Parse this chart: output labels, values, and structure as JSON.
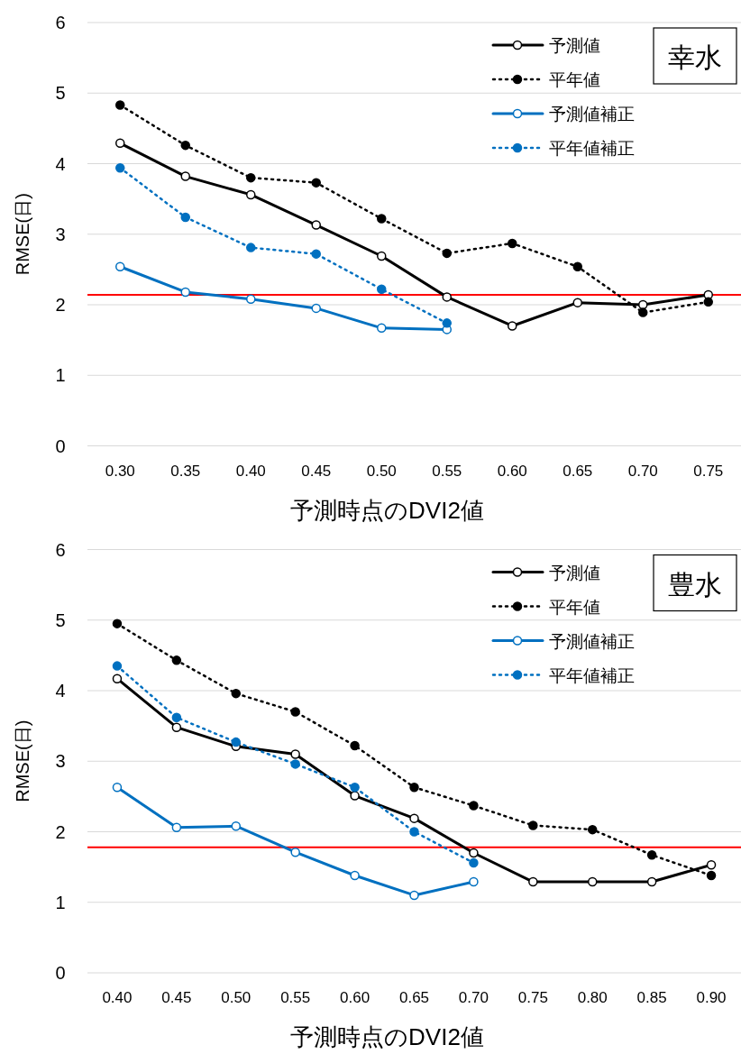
{
  "chart_data": [
    {
      "type": "line",
      "title": "幸水",
      "xlabel": "予測時点のDVI2値",
      "ylabel": "RMSE(日)",
      "categories": [
        "0.30",
        "0.35",
        "0.40",
        "0.45",
        "0.50",
        "0.55",
        "0.60",
        "0.65",
        "0.70",
        "0.75"
      ],
      "ylim": [
        0,
        6
      ],
      "yticks": [
        0,
        1,
        2,
        3,
        4,
        5,
        6
      ],
      "grid": "y",
      "legend": "top right",
      "marker": "circle",
      "series": [
        {
          "name": "予測値",
          "color": "#000000",
          "line_style": "solid",
          "values": [
            4.29,
            3.82,
            3.56,
            3.13,
            2.69,
            2.11,
            1.7,
            2.03,
            2.0,
            2.14
          ]
        },
        {
          "name": "平年値",
          "color": "#000000",
          "line_style": "dotted",
          "values": [
            4.83,
            4.26,
            3.8,
            3.73,
            3.22,
            2.73,
            2.87,
            2.54,
            1.89,
            2.04
          ]
        },
        {
          "name": "予測値補正",
          "color": "#0070c0",
          "line_style": "solid",
          "values": [
            2.54,
            2.18,
            2.08,
            1.95,
            1.67,
            1.65,
            null,
            null,
            null,
            null
          ]
        },
        {
          "name": "平年値補正",
          "color": "#0070c0",
          "line_style": "dotted",
          "values": [
            3.94,
            3.24,
            2.81,
            2.72,
            2.22,
            1.74,
            null,
            null,
            null,
            null
          ]
        }
      ],
      "ref_lines": [
        {
          "axis": "y",
          "value": 2.14,
          "color": "#ff0000"
        }
      ]
    },
    {
      "type": "line",
      "title": "豊水",
      "xlabel": "予測時点のDVI2値",
      "ylabel": "RMSE(日)",
      "categories": [
        "0.40",
        "0.45",
        "0.50",
        "0.55",
        "0.60",
        "0.65",
        "0.70",
        "0.75",
        "0.80",
        "0.85",
        "0.90"
      ],
      "ylim": [
        0,
        6
      ],
      "yticks": [
        0,
        1,
        2,
        3,
        4,
        5,
        6
      ],
      "grid": "y",
      "legend": "top right",
      "marker": "circle",
      "series": [
        {
          "name": "予測値",
          "color": "#000000",
          "line_style": "solid",
          "values": [
            4.17,
            3.48,
            3.21,
            3.1,
            2.51,
            2.19,
            1.7,
            1.29,
            1.29,
            1.29,
            1.53
          ]
        },
        {
          "name": "平年値",
          "color": "#000000",
          "line_style": "dotted",
          "values": [
            4.95,
            4.43,
            3.96,
            3.7,
            3.22,
            2.63,
            2.37,
            2.09,
            2.03,
            1.67,
            1.38
          ]
        },
        {
          "name": "予測値補正",
          "color": "#0070c0",
          "line_style": "solid",
          "values": [
            2.63,
            2.06,
            2.08,
            1.71,
            1.38,
            1.1,
            1.29,
            null,
            null,
            null,
            null
          ]
        },
        {
          "name": "平年値補正",
          "color": "#0070c0",
          "line_style": "dotted",
          "values": [
            4.35,
            3.62,
            3.27,
            2.96,
            2.63,
            2.0,
            1.56,
            null,
            null,
            null,
            null
          ]
        }
      ],
      "ref_lines": [
        {
          "axis": "y",
          "value": 1.78,
          "color": "#ff0000"
        }
      ]
    }
  ]
}
